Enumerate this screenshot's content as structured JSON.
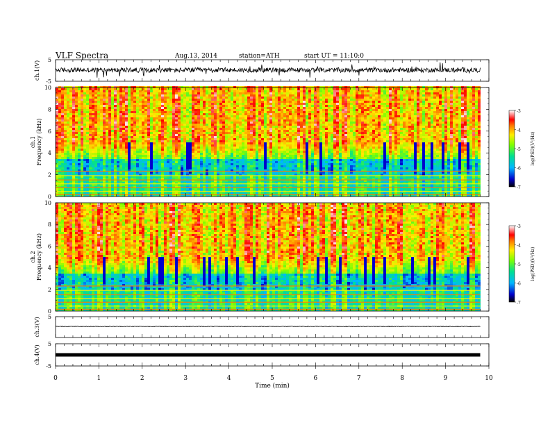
{
  "header": {
    "title": "VLF  Spectra",
    "date": "Aug.13, 2014",
    "station": "station=ATH",
    "start": "start  UT  =   11:10:0"
  },
  "chart_data": {
    "type": "heatmap",
    "xlabel": "Time  (min)",
    "xlim": [
      0,
      10
    ],
    "xticks": [
      "0",
      "1",
      "2",
      "3",
      "4",
      "5",
      "6",
      "7",
      "8",
      "9",
      "10"
    ],
    "data_end_min": 9.8,
    "panels": [
      {
        "id": "ch1-waveform",
        "type": "line",
        "ylabel": "ch.1(V)",
        "ylim": [
          -5,
          5
        ],
        "yticks": [
          "5",
          "-5"
        ],
        "trace_level": 0.2,
        "trace_amplitude": 1.1,
        "color": "#000000"
      },
      {
        "id": "ch1-spectrogram",
        "type": "heatmap",
        "ylabel": "ch.1 Frequency (kHz)",
        "ylim": [
          0,
          10
        ],
        "yticks": [
          "0",
          "2",
          "4",
          "6",
          "8",
          "10"
        ],
        "colorbar": {
          "label": "log(PSD)(V²/Hz)",
          "range": [
            -7,
            -3
          ],
          "ticks": [
            "-3",
            "-4",
            "-5",
            "-6",
            "-7"
          ]
        }
      },
      {
        "id": "ch2-spectrogram",
        "type": "heatmap",
        "ylabel": "ch.2 Frequency (kHz)",
        "ylim": [
          0,
          10
        ],
        "yticks": [
          "0",
          "2",
          "4",
          "6",
          "8",
          "10"
        ],
        "colorbar": {
          "label": "log(PSD)(V²/Hz)",
          "range": [
            -7,
            -3
          ],
          "ticks": [
            "-3",
            "-4",
            "-5",
            "-6",
            "-7"
          ]
        }
      },
      {
        "id": "ch3-waveform",
        "type": "line",
        "ylabel": "ch.3(V)",
        "ylim": [
          -5,
          5
        ],
        "yticks": [
          "5"
        ],
        "trace_level": 0.3,
        "trace_amplitude": 0.15,
        "color": "#000000"
      },
      {
        "id": "ch4-waveform",
        "type": "line",
        "ylabel": "ch.4(V)",
        "ylim": [
          -5,
          5
        ],
        "yticks": [
          "5",
          "-5"
        ],
        "trace_level": 0,
        "trace_amplitude": 0,
        "color": "#000000"
      }
    ]
  }
}
